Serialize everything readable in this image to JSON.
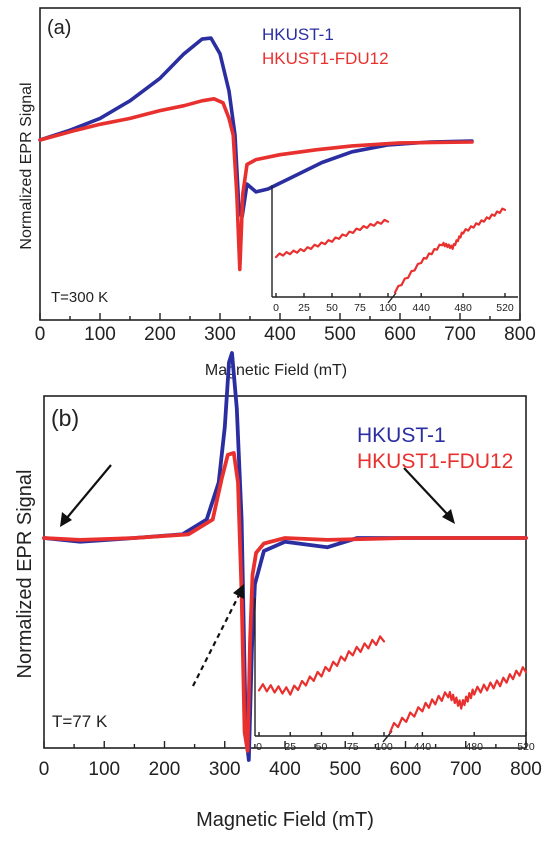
{
  "chart_data": [
    {
      "type": "line",
      "panel_label": "(a)",
      "xlabel": "Magnetic Field (mT)",
      "ylabel": "Normalized EPR Signal",
      "xlim": [
        0,
        800
      ],
      "xticks": [
        "0",
        "100",
        "200",
        "300",
        "400",
        "500",
        "600",
        "700",
        "800"
      ],
      "temperature": "T=300 K",
      "series": [
        {
          "name": "HKUST-1",
          "color": "#2b2ea0",
          "x": [
            0,
            50,
            100,
            150,
            200,
            240,
            270,
            285,
            300,
            315,
            325,
            332,
            337,
            345,
            360,
            380,
            420,
            470,
            520,
            580,
            650,
            720
          ],
          "y": [
            0.0,
            0.1,
            0.22,
            0.4,
            0.63,
            0.88,
            1.03,
            1.04,
            0.88,
            0.5,
            0.05,
            -0.75,
            -0.78,
            -0.45,
            -0.53,
            -0.5,
            -0.38,
            -0.23,
            -0.12,
            -0.05,
            -0.02,
            -0.01
          ]
        },
        {
          "name": "HKUST1-FDU12",
          "color": "#e8312f",
          "x": [
            0,
            30,
            60,
            100,
            150,
            200,
            240,
            270,
            290,
            305,
            315,
            322,
            328,
            333,
            338,
            345,
            360,
            400,
            460,
            520,
            600,
            720
          ],
          "y": [
            0.0,
            0.05,
            0.1,
            0.16,
            0.22,
            0.3,
            0.35,
            0.4,
            0.42,
            0.38,
            0.22,
            0.05,
            -0.55,
            -1.32,
            -0.55,
            -0.25,
            -0.2,
            -0.15,
            -0.1,
            -0.06,
            -0.03,
            -0.02
          ]
        }
      ],
      "inset": {
        "xticks": [
          "0",
          "25",
          "50",
          "75",
          "100",
          "440",
          "480",
          "520"
        ],
        "segment1": {
          "x": [
            0,
            25,
            50,
            75,
            100
          ],
          "y": [
            0.35,
            0.4,
            0.48,
            0.58,
            0.65
          ]
        },
        "segment2": {
          "x": [
            415,
            440,
            460,
            470,
            480,
            500,
            520
          ],
          "y": [
            0.05,
            0.3,
            0.45,
            0.42,
            0.55,
            0.65,
            0.75
          ]
        }
      }
    },
    {
      "type": "line",
      "panel_label": "(b)",
      "xlabel": "Magnetic Field (mT)",
      "ylabel": "Normalized EPR Signal",
      "xlim": [
        0,
        800
      ],
      "xticks": [
        "0",
        "100",
        "200",
        "300",
        "400",
        "500",
        "600",
        "700",
        "800"
      ],
      "temperature": "T=77 K",
      "series": [
        {
          "name": "HKUST-1",
          "color": "#2b2ea0",
          "x": [
            0,
            60,
            150,
            230,
            270,
            290,
            300,
            307,
            312,
            320,
            328,
            335,
            340,
            345,
            350,
            365,
            400,
            470,
            520,
            600,
            800
          ],
          "y": [
            0.0,
            -0.02,
            0.0,
            0.02,
            0.1,
            0.3,
            0.6,
            0.95,
            1.0,
            0.7,
            0.1,
            -1.05,
            -1.2,
            -0.6,
            -0.25,
            -0.07,
            -0.02,
            -0.05,
            0.0,
            0.0,
            0.0
          ]
        },
        {
          "name": "HKUST1-FDU12",
          "color": "#e8312f",
          "x": [
            0,
            60,
            150,
            240,
            280,
            295,
            305,
            315,
            322,
            328,
            333,
            338,
            342,
            346,
            352,
            365,
            400,
            470,
            600,
            800
          ],
          "y": [
            0.0,
            -0.01,
            0.0,
            0.02,
            0.1,
            0.32,
            0.45,
            0.46,
            0.3,
            -0.3,
            -1.05,
            -1.15,
            -0.55,
            -0.2,
            -0.08,
            -0.03,
            0.0,
            -0.01,
            0.0,
            0.0
          ]
        }
      ],
      "inset": {
        "xticks": [
          "0",
          "25",
          "50",
          "75",
          "100",
          "440",
          "480",
          "520"
        ],
        "segment1": {
          "x": [
            0,
            25,
            50,
            75,
            100
          ],
          "y": [
            0.35,
            0.32,
            0.45,
            0.6,
            0.7
          ]
        },
        "segment2": {
          "x": [
            415,
            440,
            460,
            470,
            480,
            500,
            520
          ],
          "y": [
            0.05,
            0.2,
            0.3,
            0.22,
            0.32,
            0.38,
            0.48
          ]
        }
      }
    }
  ]
}
